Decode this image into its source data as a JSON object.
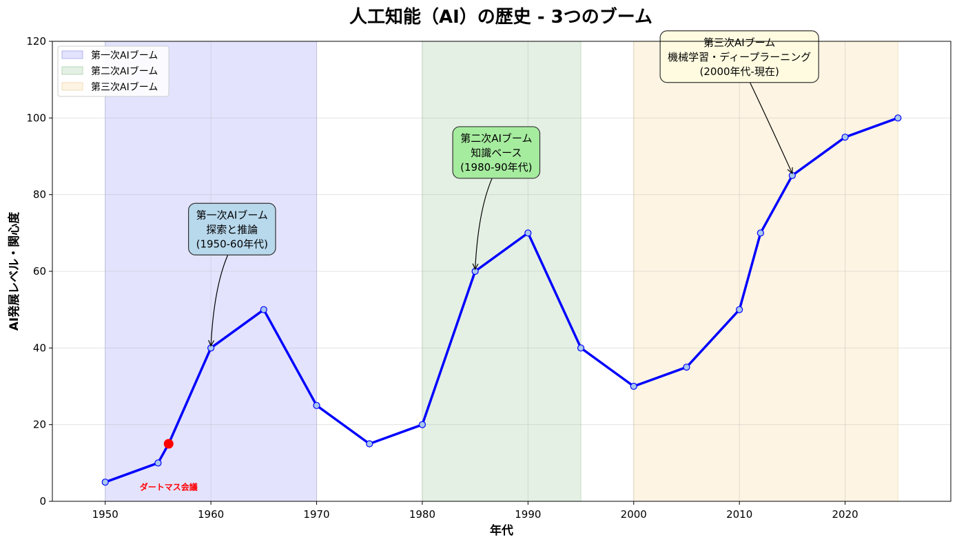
{
  "chart_data": {
    "type": "line",
    "title": "人工知能（AI）の歴史 - 3つのブーム",
    "xlabel": "年代",
    "ylabel": "AI発展レベル・関心度",
    "xlim": [
      1945,
      2030
    ],
    "ylim": [
      0,
      120
    ],
    "xticks": [
      1950,
      1960,
      1970,
      1980,
      1990,
      2000,
      2010,
      2020
    ],
    "yticks": [
      0,
      20,
      40,
      60,
      80,
      100,
      120
    ],
    "grid": true,
    "legend_position": "top-left",
    "series": [
      {
        "color": "#0000ff",
        "marker_fill": "#a8c8ec",
        "points": [
          {
            "x": 1950,
            "y": 5
          },
          {
            "x": 1955,
            "y": 10
          },
          {
            "x": 1956,
            "y": 15
          },
          {
            "x": 1960,
            "y": 40
          },
          {
            "x": 1965,
            "y": 50
          },
          {
            "x": 1970,
            "y": 25
          },
          {
            "x": 1975,
            "y": 15
          },
          {
            "x": 1980,
            "y": 20
          },
          {
            "x": 1985,
            "y": 60
          },
          {
            "x": 1990,
            "y": 70
          },
          {
            "x": 1995,
            "y": 40
          },
          {
            "x": 2000,
            "y": 30
          },
          {
            "x": 2005,
            "y": 35
          },
          {
            "x": 2010,
            "y": 50
          },
          {
            "x": 2012,
            "y": 70
          },
          {
            "x": 2015,
            "y": 85
          },
          {
            "x": 2020,
            "y": 95
          },
          {
            "x": 2025,
            "y": 100
          }
        ]
      }
    ],
    "booms": [
      {
        "label": "第一次AIブーム",
        "start": 1950,
        "end": 1970,
        "fill": "#e3e3fe",
        "edge": "#c8c8f0",
        "legend_fill": "#e3e3fe",
        "legend_edge": "#b0b0f0"
      },
      {
        "label": "第二次AIブーム",
        "start": 1980,
        "end": 1995,
        "fill": "#e4f0e4",
        "edge": "#c6dcc6",
        "legend_fill": "#e4f0e4",
        "legend_edge": "#b7d6b7"
      },
      {
        "label": "第三次AIブーム",
        "start": 2000,
        "end": 2025,
        "fill": "#fdf4e3",
        "edge": "#f1e2c4",
        "legend_fill": "#fdf4e3",
        "legend_edge": "#f0dcb5"
      }
    ],
    "highlight": {
      "x": 1956,
      "y": 15,
      "color": "#ff0000",
      "label": "ダートマス会議"
    },
    "annotations": [
      {
        "lines": [
          "第一次AIブーム",
          "探索と推論",
          "(1950-60年代)"
        ],
        "box_x": 1962,
        "box_y": 71,
        "target_x": 1960,
        "target_y": 40,
        "fill": "#b8d8ec"
      },
      {
        "lines": [
          "第二次AIブーム",
          "知識ベース",
          "(1980-90年代)"
        ],
        "box_x": 1987,
        "box_y": 91,
        "target_x": 1985,
        "target_y": 60,
        "fill": "#a6ec9f"
      },
      {
        "lines": [
          "第三次AIブーム",
          "機械学習・ディープラーニング",
          "(2000年代-現在)"
        ],
        "box_x": 2010,
        "box_y": 116,
        "target_x": 2015,
        "target_y": 85,
        "fill": "#fefbe0"
      }
    ]
  }
}
